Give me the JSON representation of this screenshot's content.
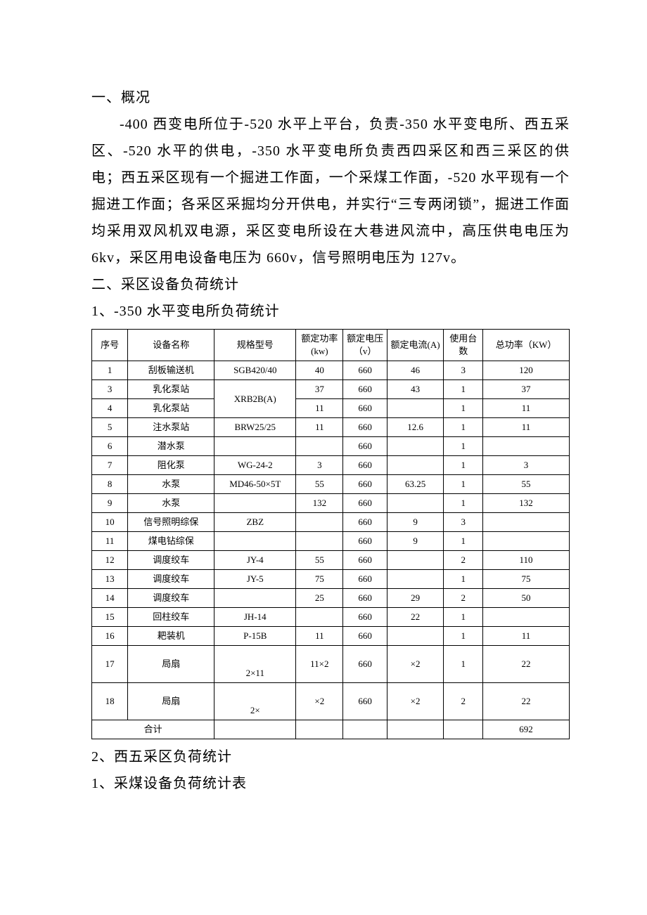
{
  "section1": {
    "heading": "一、概况",
    "body": "-400 西变电所位于-520 水平上平台，负责-350 水平变电所、西五采区、-520 水平的供电，-350 水平变电所负责西四采区和西三采区的供电；西五采区现有一个掘进工作面，一个采煤工作面，-520 水平现有一个掘进工作面；各采区采掘均分开供电，并实行“三专两闭锁”，掘进工作面均采用双风机双电源，采区变电所设在大巷进风流中，高压供电电压为 6kv，采区用电设备电压为 660v，信号照明电压为 127v。"
  },
  "section2": {
    "heading": "二、采区设备负荷统计",
    "sub1_title": "1、-350 水平变电所负荷统计",
    "sub2_title": "2、西五采区负荷统计",
    "sub2_1": "1、采煤设备负荷统计表"
  },
  "table1": {
    "columns": {
      "seq": "序号",
      "name": "设备名称",
      "model": "规格型号",
      "power": "额定功率(kw)",
      "volt": "额定电压（v）",
      "amp": "额定电流(A)",
      "qty": "使用台数",
      "total": "总功率（KW）"
    },
    "rows": [
      {
        "seq": "1",
        "name": "刮板输送机",
        "model": "SGB420/40",
        "power": "40",
        "volt": "660",
        "amp": "46",
        "qty": "3",
        "total": "120",
        "model_rowspan": 1
      },
      {
        "seq": "3",
        "name": "乳化泵站",
        "model": "XRB2B(A)",
        "power": "37",
        "volt": "660",
        "amp": "43",
        "qty": "1",
        "total": "37",
        "model_rowspan": 2
      },
      {
        "seq": "4",
        "name": "乳化泵站",
        "model": null,
        "power": "11",
        "volt": "660",
        "amp": "",
        "qty": "1",
        "total": "11"
      },
      {
        "seq": "5",
        "name": "注水泵站",
        "model": "BRW25/25",
        "power": "11",
        "volt": "660",
        "amp": "12.6",
        "qty": "1",
        "total": "11",
        "model_rowspan": 1
      },
      {
        "seq": "6",
        "name": "潜水泵",
        "model": "",
        "power": "",
        "volt": "660",
        "amp": "",
        "qty": "1",
        "total": "",
        "model_rowspan": 1
      },
      {
        "seq": "7",
        "name": "阻化泵",
        "model": "WG-24-2",
        "power": "3",
        "volt": "660",
        "amp": "",
        "qty": "1",
        "total": "3",
        "model_rowspan": 1
      },
      {
        "seq": "8",
        "name": "水泵",
        "model": "MD46-50×5T",
        "power": "55",
        "volt": "660",
        "amp": "63.25",
        "qty": "1",
        "total": "55",
        "model_rowspan": 1
      },
      {
        "seq": "9",
        "name": "水泵",
        "model": "",
        "power": "132",
        "volt": "660",
        "amp": "",
        "qty": "1",
        "total": "132",
        "model_rowspan": 1
      },
      {
        "seq": "10",
        "name": "信号照明综保",
        "model": "ZBZ",
        "power": "",
        "volt": "660",
        "amp": "9",
        "qty": "3",
        "total": "",
        "model_rowspan": 1
      },
      {
        "seq": "11",
        "name": "煤电钻综保",
        "model": "",
        "power": "",
        "volt": "660",
        "amp": "9",
        "qty": "1",
        "total": "",
        "model_rowspan": 1
      },
      {
        "seq": "12",
        "name": "调度绞车",
        "model": "JY-4",
        "power": "55",
        "volt": "660",
        "amp": "",
        "qty": "2",
        "total": "110",
        "model_rowspan": 1
      },
      {
        "seq": "13",
        "name": "调度绞车",
        "model": "JY-5",
        "power": "75",
        "volt": "660",
        "amp": "",
        "qty": "1",
        "total": "75",
        "model_rowspan": 1
      },
      {
        "seq": "14",
        "name": "调度绞车",
        "model": "",
        "power": "25",
        "volt": "660",
        "amp": "29",
        "qty": "2",
        "total": "50",
        "model_rowspan": 1
      },
      {
        "seq": "15",
        "name": "回柱绞车",
        "model": "JH-14",
        "power": "",
        "volt": "660",
        "amp": "22",
        "qty": "1",
        "total": "",
        "model_rowspan": 1
      },
      {
        "seq": "16",
        "name": "耙装机",
        "model": "P-15B",
        "power": "11",
        "volt": "660",
        "amp": "",
        "qty": "1",
        "total": "11",
        "model_rowspan": 1
      },
      {
        "seq": "17",
        "name": "局扇",
        "model": "2×11",
        "power": "11×2",
        "volt": "660",
        "amp": "×2",
        "qty": "1",
        "total": "22",
        "model_rowspan": 1,
        "tall": true
      },
      {
        "seq": "18",
        "name": "局扇",
        "model": "2×",
        "power": "×2",
        "volt": "660",
        "amp": "×2",
        "qty": "2",
        "total": "22",
        "model_rowspan": 1,
        "tall": true
      }
    ],
    "footer": {
      "label": "合计",
      "total": "692"
    }
  }
}
